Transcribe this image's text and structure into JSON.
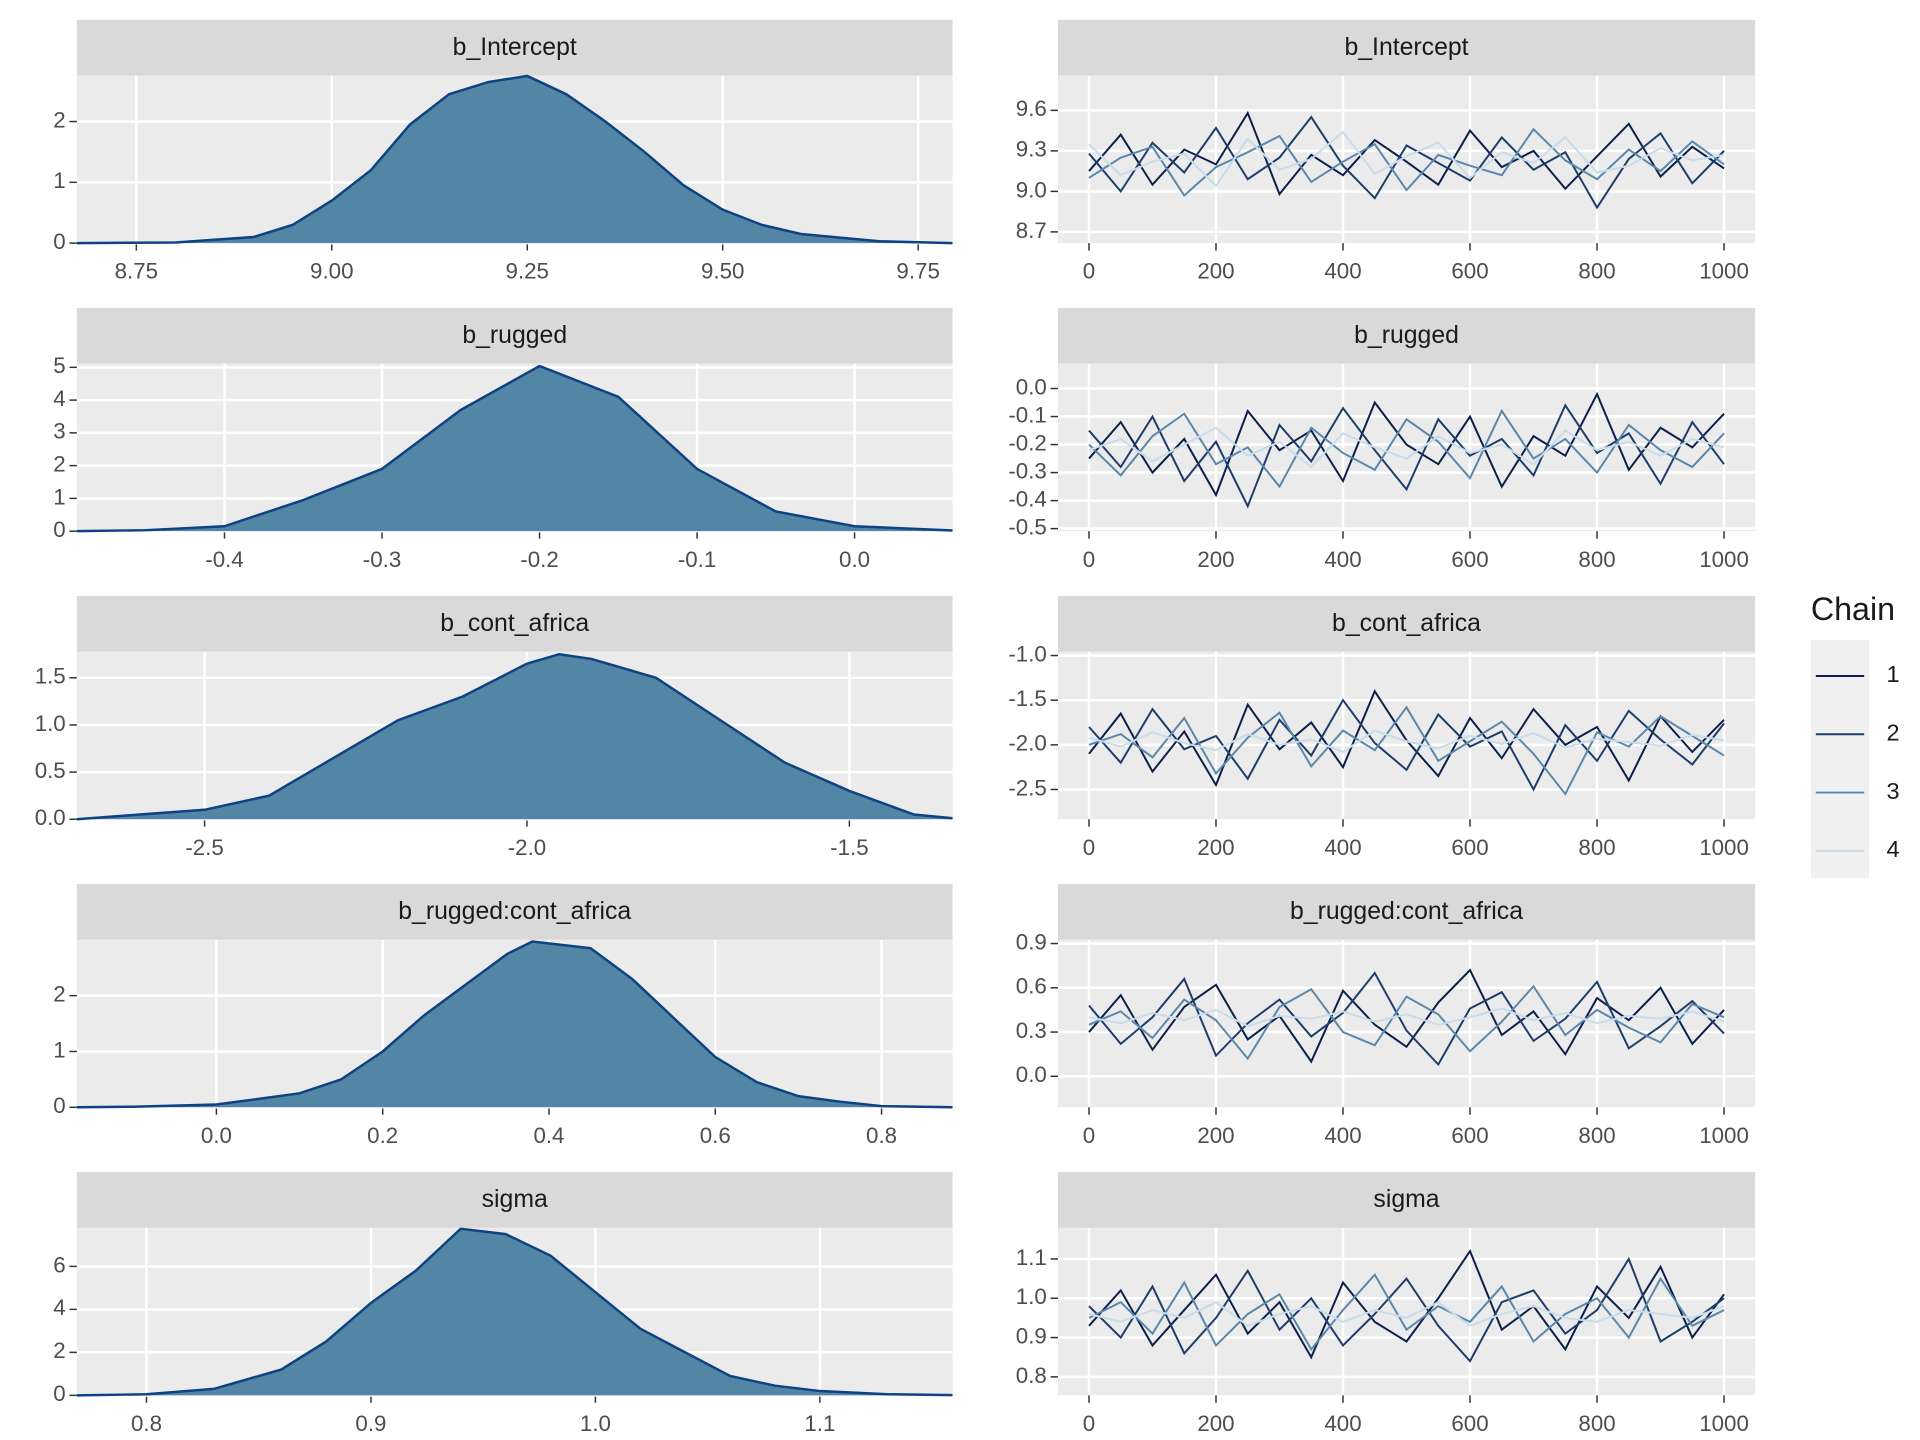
{
  "legend_title": "Chain",
  "chart_data": [
    {
      "type": "area",
      "title": "b_Intercept",
      "color": "#5385a4",
      "line_color": "#0e4282",
      "x": [
        8.674,
        8.8,
        8.9,
        8.95,
        9.0,
        9.05,
        9.1,
        9.15,
        9.2,
        9.25,
        9.3,
        9.35,
        9.4,
        9.45,
        9.5,
        9.55,
        9.6,
        9.7,
        9.794
      ],
      "values": [
        0,
        0.01,
        0.1,
        0.3,
        0.7,
        1.2,
        1.95,
        2.45,
        2.65,
        2.75,
        2.45,
        2.0,
        1.5,
        0.95,
        0.55,
        0.3,
        0.15,
        0.03,
        0
      ],
      "xlim": [
        8.674,
        9.794
      ],
      "ylim": [
        0,
        2.755
      ],
      "xticks": [
        8.75,
        {
          "value": 9.0,
          "label": "9.00"
        },
        9.25,
        {
          "value": 9.5,
          "label": "9.50"
        },
        9.75
      ],
      "yticks": [
        0,
        1,
        2
      ],
      "grid": true
    },
    {
      "type": "area",
      "title": "b_rugged",
      "color": "#5385a4",
      "line_color": "#0e4282",
      "x": [
        -0.4937,
        -0.45,
        -0.4,
        -0.35,
        -0.3,
        -0.25,
        -0.2,
        -0.15,
        -0.1,
        -0.05,
        0.0,
        0.0622
      ],
      "values": [
        0,
        0.03,
        0.15,
        0.95,
        1.9,
        3.7,
        5.04,
        4.1,
        1.9,
        0.6,
        0.15,
        0.02
      ],
      "xlim": [
        -0.4937,
        0.0622
      ],
      "ylim": [
        0,
        5.11
      ],
      "xticks": [
        -0.4,
        -0.3,
        -0.2,
        -0.1,
        {
          "value": 0.0,
          "label": "0.0"
        }
      ],
      "yticks": [
        0,
        1,
        2,
        3,
        4,
        5
      ],
      "grid": true
    },
    {
      "type": "area",
      "title": "b_cont_africa",
      "color": "#5385a4",
      "line_color": "#0e4282",
      "x": [
        -2.698,
        -2.6,
        -2.5,
        -2.4,
        -2.3,
        -2.2,
        -2.1,
        -2.0,
        -1.95,
        -1.9,
        -1.8,
        -1.7,
        -1.6,
        -1.5,
        -1.4,
        -1.34
      ],
      "values": [
        0,
        0.05,
        0.1,
        0.25,
        0.65,
        1.05,
        1.3,
        1.65,
        1.75,
        1.7,
        1.5,
        1.05,
        0.6,
        0.3,
        0.05,
        0.01
      ],
      "xlim": [
        -2.698,
        -1.34
      ],
      "ylim": [
        0,
        1.776
      ],
      "xticks": [
        -2.5,
        {
          "value": -2.0,
          "label": "-2.0"
        },
        -1.5
      ],
      "yticks": [
        {
          "value": 0,
          "label": "0.0"
        },
        0.5,
        {
          "value": 1,
          "label": "1.0"
        },
        1.5
      ],
      "grid": true
    },
    {
      "type": "area",
      "title": "b_rugged:cont_africa",
      "color": "#5385a4",
      "line_color": "#0e4282",
      "x": [
        -0.1678,
        -0.1,
        0.0,
        0.1,
        0.15,
        0.2,
        0.25,
        0.3,
        0.35,
        0.38,
        0.45,
        0.5,
        0.55,
        0.6,
        0.65,
        0.7,
        0.75,
        0.8,
        0.8854
      ],
      "values": [
        0,
        0.01,
        0.05,
        0.25,
        0.5,
        1.0,
        1.65,
        2.2,
        2.75,
        2.97,
        2.85,
        2.3,
        1.6,
        0.9,
        0.45,
        0.2,
        0.1,
        0.02,
        0
      ],
      "xlim": [
        -0.1678,
        0.8854
      ],
      "ylim": [
        0,
        3.0
      ],
      "xticks": [
        {
          "value": 0,
          "label": "0.0"
        },
        0.2,
        0.4,
        0.6,
        0.8
      ],
      "yticks": [
        0,
        1,
        2
      ],
      "grid": true
    },
    {
      "type": "area",
      "title": "sigma",
      "color": "#5385a4",
      "line_color": "#0e4282",
      "x": [
        0.769,
        0.8,
        0.83,
        0.86,
        0.88,
        0.9,
        0.92,
        0.94,
        0.96,
        0.98,
        1.0,
        1.02,
        1.04,
        1.06,
        1.08,
        1.1,
        1.13,
        1.1591
      ],
      "values": [
        0,
        0.05,
        0.3,
        1.2,
        2.5,
        4.3,
        5.8,
        7.75,
        7.5,
        6.5,
        4.8,
        3.1,
        2.0,
        0.9,
        0.45,
        0.2,
        0.05,
        0.01
      ],
      "xlim": [
        0.769,
        1.1591
      ],
      "ylim": [
        0,
        7.79
      ],
      "xticks": [
        0.8,
        0.9,
        {
          "value": 1,
          "label": "1.0"
        },
        1.1
      ],
      "yticks": [
        0,
        2,
        4,
        6
      ],
      "grid": true
    },
    {
      "type": "line",
      "title": "b_Intercept",
      "x": [
        0,
        50,
        100,
        150,
        200,
        250,
        300,
        350,
        400,
        450,
        500,
        550,
        600,
        650,
        700,
        750,
        800,
        850,
        900,
        950,
        1000
      ],
      "series": [
        {
          "name": "1",
          "color": "#0b1f4a",
          "values": [
            9.15,
            9.42,
            9.05,
            9.31,
            9.2,
            9.58,
            8.98,
            9.27,
            9.12,
            9.38,
            9.22,
            9.05,
            9.45,
            9.18,
            9.3,
            9.02,
            9.26,
            9.5,
            9.11,
            9.33,
            9.17
          ]
        },
        {
          "name": "2",
          "color": "#1e3d6b",
          "values": [
            9.28,
            9.0,
            9.36,
            9.14,
            9.47,
            9.09,
            9.25,
            9.55,
            9.19,
            8.95,
            9.34,
            9.21,
            9.08,
            9.4,
            9.16,
            9.29,
            8.88,
            9.24,
            9.43,
            9.06,
            9.3
          ]
        },
        {
          "name": "3",
          "color": "#5a87aa",
          "values": [
            9.1,
            9.25,
            9.33,
            8.97,
            9.18,
            9.29,
            9.41,
            9.07,
            9.22,
            9.35,
            9.01,
            9.27,
            9.19,
            9.12,
            9.46,
            9.23,
            9.09,
            9.31,
            9.15,
            9.37,
            9.2
          ]
        },
        {
          "name": "4",
          "color": "#c8dcea",
          "values": [
            9.35,
            9.12,
            9.22,
            9.28,
            9.04,
            9.39,
            9.16,
            9.24,
            9.44,
            9.13,
            9.26,
            9.36,
            9.1,
            9.29,
            9.21,
            9.4,
            9.14,
            9.19,
            9.32,
            9.23,
            9.27
          ]
        }
      ],
      "xlim": [
        -48.8,
        1048.8
      ],
      "ylim": [
        8.617,
        9.857
      ],
      "xticks": [
        0,
        200,
        400,
        600,
        800,
        1000
      ],
      "yticks": [
        8.7,
        {
          "value": 9.0,
          "label": "9.0"
        },
        9.3,
        9.6
      ],
      "grid": true
    },
    {
      "type": "line",
      "title": "b_rugged",
      "x": [
        0,
        50,
        100,
        150,
        200,
        250,
        300,
        350,
        400,
        450,
        500,
        550,
        600,
        650,
        700,
        750,
        800,
        850,
        900,
        950,
        1000
      ],
      "series": [
        {
          "name": "1",
          "color": "#0b1f4a",
          "values": [
            -0.25,
            -0.12,
            -0.3,
            -0.18,
            -0.38,
            -0.08,
            -0.22,
            -0.15,
            -0.33,
            -0.05,
            -0.2,
            -0.27,
            -0.1,
            -0.35,
            -0.17,
            -0.24,
            -0.02,
            -0.29,
            -0.14,
            -0.21,
            -0.09
          ]
        },
        {
          "name": "2",
          "color": "#1e3d6b",
          "values": [
            -0.15,
            -0.28,
            -0.1,
            -0.33,
            -0.19,
            -0.42,
            -0.13,
            -0.26,
            -0.07,
            -0.22,
            -0.36,
            -0.11,
            -0.24,
            -0.18,
            -0.31,
            -0.06,
            -0.23,
            -0.16,
            -0.34,
            -0.12,
            -0.27
          ]
        },
        {
          "name": "3",
          "color": "#5a87aa",
          "values": [
            -0.2,
            -0.31,
            -0.17,
            -0.09,
            -0.27,
            -0.21,
            -0.35,
            -0.14,
            -0.23,
            -0.29,
            -0.11,
            -0.19,
            -0.32,
            -0.08,
            -0.25,
            -0.18,
            -0.3,
            -0.13,
            -0.22,
            -0.28,
            -0.16
          ]
        },
        {
          "name": "4",
          "color": "#c8dcea",
          "values": [
            -0.22,
            -0.18,
            -0.26,
            -0.2,
            -0.14,
            -0.24,
            -0.19,
            -0.28,
            -0.16,
            -0.21,
            -0.25,
            -0.17,
            -0.23,
            -0.2,
            -0.27,
            -0.15,
            -0.22,
            -0.19,
            -0.24,
            -0.18,
            -0.21
          ]
        }
      ],
      "xlim": [
        -48.8,
        1048.8
      ],
      "ylim": [
        -0.509,
        0.0885
      ],
      "xticks": [
        0,
        200,
        400,
        600,
        800,
        1000
      ],
      "yticks": [
        -0.5,
        -0.4,
        -0.3,
        -0.2,
        -0.1,
        {
          "value": 0,
          "label": "0.0"
        }
      ],
      "grid": true
    },
    {
      "type": "line",
      "title": "b_cont_africa",
      "x": [
        0,
        50,
        100,
        150,
        200,
        250,
        300,
        350,
        400,
        450,
        500,
        550,
        600,
        650,
        700,
        750,
        800,
        850,
        900,
        950,
        1000
      ],
      "series": [
        {
          "name": "1",
          "color": "#0b1f4a",
          "values": [
            -2.1,
            -1.65,
            -2.3,
            -1.85,
            -2.45,
            -1.55,
            -2.05,
            -1.75,
            -2.25,
            -1.4,
            -1.95,
            -2.35,
            -1.7,
            -2.15,
            -1.6,
            -2.0,
            -1.8,
            -2.4,
            -1.68,
            -2.08,
            -1.72
          ]
        },
        {
          "name": "2",
          "color": "#1e3d6b",
          "values": [
            -1.8,
            -2.2,
            -1.6,
            -2.05,
            -1.9,
            -2.38,
            -1.72,
            -2.12,
            -1.5,
            -1.98,
            -2.28,
            -1.66,
            -2.02,
            -1.85,
            -2.5,
            -1.78,
            -2.18,
            -1.62,
            -1.94,
            -2.22,
            -1.76
          ]
        },
        {
          "name": "3",
          "color": "#5a87aa",
          "values": [
            -2.0,
            -1.88,
            -2.14,
            -1.7,
            -2.32,
            -1.92,
            -1.64,
            -2.24,
            -1.84,
            -2.06,
            -1.58,
            -2.18,
            -1.96,
            -1.74,
            -2.1,
            -2.55,
            -1.86,
            -2.02,
            -1.68,
            -1.9,
            -2.12
          ]
        },
        {
          "name": "4",
          "color": "#c8dcea",
          "values": [
            -1.92,
            -2.02,
            -1.86,
            -1.98,
            -2.06,
            -1.88,
            -2.0,
            -1.94,
            -2.08,
            -1.84,
            -1.96,
            -2.04,
            -1.9,
            -1.99,
            -1.87,
            -2.03,
            -1.93,
            -1.97,
            -2.01,
            -1.89,
            -1.95
          ]
        }
      ],
      "xlim": [
        -48.8,
        1048.8
      ],
      "ylim": [
        -2.833,
        -0.958
      ],
      "xticks": [
        0,
        200,
        400,
        600,
        800,
        1000
      ],
      "yticks": [
        -2.5,
        {
          "value": -2,
          "label": "-2.0"
        },
        -1.5,
        {
          "value": -1,
          "label": "-1.0"
        }
      ],
      "grid": true
    },
    {
      "type": "line",
      "title": "b_rugged:cont_africa",
      "x": [
        0,
        50,
        100,
        150,
        200,
        250,
        300,
        350,
        400,
        450,
        500,
        550,
        600,
        650,
        700,
        750,
        800,
        850,
        900,
        950,
        1000
      ],
      "series": [
        {
          "name": "1",
          "color": "#0b1f4a",
          "values": [
            0.3,
            0.55,
            0.18,
            0.47,
            0.62,
            0.25,
            0.41,
            0.1,
            0.58,
            0.35,
            0.2,
            0.5,
            0.72,
            0.28,
            0.44,
            0.15,
            0.53,
            0.38,
            0.6,
            0.22,
            0.45
          ]
        },
        {
          "name": "2",
          "color": "#1e3d6b",
          "values": [
            0.48,
            0.22,
            0.4,
            0.66,
            0.14,
            0.36,
            0.52,
            0.27,
            0.43,
            0.7,
            0.31,
            0.08,
            0.46,
            0.57,
            0.24,
            0.39,
            0.64,
            0.19,
            0.34,
            0.51,
            0.29
          ]
        },
        {
          "name": "3",
          "color": "#5a87aa",
          "values": [
            0.35,
            0.44,
            0.26,
            0.52,
            0.38,
            0.12,
            0.47,
            0.59,
            0.3,
            0.21,
            0.54,
            0.42,
            0.17,
            0.37,
            0.61,
            0.28,
            0.45,
            0.33,
            0.23,
            0.49,
            0.4
          ]
        },
        {
          "name": "4",
          "color": "#c8dcea",
          "values": [
            0.4,
            0.36,
            0.43,
            0.38,
            0.45,
            0.34,
            0.41,
            0.39,
            0.44,
            0.37,
            0.42,
            0.35,
            0.4,
            0.46,
            0.38,
            0.43,
            0.36,
            0.41,
            0.39,
            0.44,
            0.37
          ]
        }
      ],
      "xlim": [
        -48.8,
        1048.8
      ],
      "ylim": [
        -0.21,
        0.925
      ],
      "xticks": [
        0,
        200,
        400,
        600,
        800,
        1000
      ],
      "yticks": [
        {
          "value": 0,
          "label": "0.0"
        },
        0.3,
        0.6,
        0.9
      ],
      "grid": true
    },
    {
      "type": "line",
      "title": "sigma",
      "x": [
        0,
        50,
        100,
        150,
        200,
        250,
        300,
        350,
        400,
        450,
        500,
        550,
        600,
        650,
        700,
        750,
        800,
        850,
        900,
        950,
        1000
      ],
      "series": [
        {
          "name": "1",
          "color": "#0b1f4a",
          "values": [
            0.93,
            1.02,
            0.88,
            0.97,
            1.06,
            0.91,
            0.99,
            0.85,
            1.04,
            0.94,
            0.89,
            1.0,
            1.12,
            0.92,
            0.98,
            0.87,
            1.03,
            0.95,
            1.08,
            0.9,
            1.01
          ]
        },
        {
          "name": "2",
          "color": "#1e3d6b",
          "values": [
            0.98,
            0.9,
            1.03,
            0.86,
            0.95,
            1.07,
            0.92,
            1.0,
            0.88,
            0.96,
            1.05,
            0.93,
            0.84,
            0.99,
            1.02,
            0.91,
            0.97,
            1.1,
            0.89,
            0.94,
            1.0
          ]
        },
        {
          "name": "3",
          "color": "#5a87aa",
          "values": [
            0.95,
            0.99,
            0.91,
            1.04,
            0.88,
            0.96,
            1.01,
            0.87,
            0.97,
            1.06,
            0.92,
            0.98,
            0.94,
            1.03,
            0.89,
            0.96,
            1.0,
            0.9,
            1.05,
            0.93,
            0.97
          ]
        },
        {
          "name": "4",
          "color": "#c8dcea",
          "values": [
            0.96,
            0.94,
            0.97,
            0.95,
            0.99,
            0.93,
            0.96,
            0.98,
            0.94,
            0.97,
            0.95,
            0.99,
            0.93,
            0.96,
            0.98,
            0.95,
            0.94,
            0.97,
            0.96,
            0.95,
            0.98
          ]
        }
      ],
      "xlim": [
        -48.8,
        1048.8
      ],
      "ylim": [
        0.753,
        1.179
      ],
      "xticks": [
        0,
        200,
        400,
        600,
        800,
        1000
      ],
      "yticks": [
        0.8,
        0.9,
        {
          "value": 1,
          "label": "1.0"
        },
        1.1
      ],
      "grid": true
    }
  ]
}
